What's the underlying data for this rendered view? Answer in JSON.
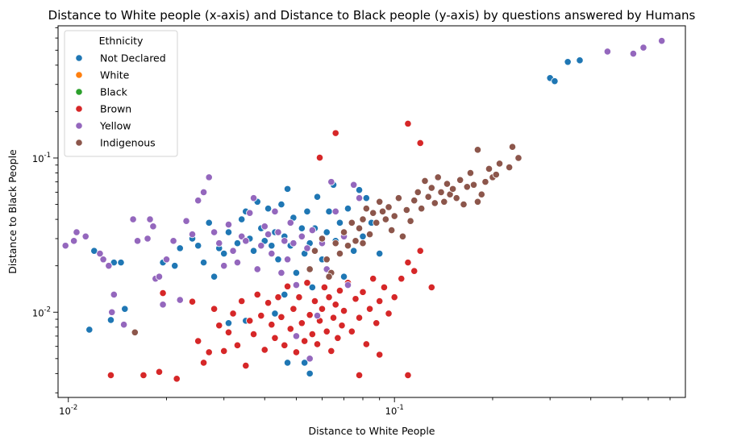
{
  "chart_data": {
    "type": "scatter",
    "title": "Distance to White people (x-axis) and Distance to Black people (y-axis) by questions answered by Humans",
    "xlabel": "Distance to White People",
    "ylabel": "Distance to Black People",
    "xscale": "log",
    "yscale": "log",
    "xlim": [
      0.0093,
      0.78
    ],
    "ylim": [
      0.0028,
      0.72
    ],
    "x_ticks": [
      {
        "value": 0.01,
        "label": "10^-2"
      },
      {
        "value": 0.1,
        "label": "10^-1"
      }
    ],
    "y_ticks": [
      {
        "value": 0.01,
        "label": "10^-2"
      },
      {
        "value": 0.1,
        "label": "10^-1"
      }
    ],
    "grid": false,
    "legend_position": "top-left",
    "legend_title": "Ethnicity",
    "series": [
      {
        "name": "Not Declared",
        "color": "#1f77b4",
        "points": [
          [
            0.0116,
            0.0077
          ],
          [
            0.012,
            0.025
          ],
          [
            0.0135,
            0.0089
          ],
          [
            0.0138,
            0.021
          ],
          [
            0.0145,
            0.021
          ],
          [
            0.0149,
            0.0105
          ],
          [
            0.0195,
            0.021
          ],
          [
            0.0212,
            0.02
          ],
          [
            0.022,
            0.026
          ],
          [
            0.024,
            0.03
          ],
          [
            0.025,
            0.027
          ],
          [
            0.026,
            0.021
          ],
          [
            0.027,
            0.038
          ],
          [
            0.028,
            0.017
          ],
          [
            0.029,
            0.026
          ],
          [
            0.03,
            0.024
          ],
          [
            0.031,
            0.0085
          ],
          [
            0.031,
            0.033
          ],
          [
            0.033,
            0.028
          ],
          [
            0.034,
            0.04
          ],
          [
            0.035,
            0.045
          ],
          [
            0.036,
            0.03
          ],
          [
            0.037,
            0.025
          ],
          [
            0.038,
            0.052
          ],
          [
            0.039,
            0.035
          ],
          [
            0.04,
            0.029
          ],
          [
            0.041,
            0.047
          ],
          [
            0.042,
            0.027
          ],
          [
            0.043,
            0.033
          ],
          [
            0.044,
            0.022
          ],
          [
            0.045,
            0.05
          ],
          [
            0.046,
            0.031
          ],
          [
            0.047,
            0.063
          ],
          [
            0.048,
            0.027
          ],
          [
            0.049,
            0.041
          ],
          [
            0.05,
            0.018
          ],
          [
            0.052,
            0.035
          ],
          [
            0.053,
            0.024
          ],
          [
            0.054,
            0.045
          ],
          [
            0.055,
            0.028
          ],
          [
            0.056,
            0.0145
          ],
          [
            0.057,
            0.035
          ],
          [
            0.058,
            0.056
          ],
          [
            0.06,
            0.022
          ],
          [
            0.062,
            0.033
          ],
          [
            0.063,
            0.045
          ],
          [
            0.065,
            0.067
          ],
          [
            0.066,
            0.029
          ],
          [
            0.068,
            0.038
          ],
          [
            0.07,
            0.017
          ],
          [
            0.072,
            0.047
          ],
          [
            0.075,
            0.025
          ],
          [
            0.078,
            0.062
          ],
          [
            0.08,
            0.031
          ],
          [
            0.082,
            0.055
          ],
          [
            0.085,
            0.038
          ],
          [
            0.09,
            0.024
          ],
          [
            0.035,
            0.0088
          ],
          [
            0.047,
            0.0047
          ],
          [
            0.053,
            0.0047
          ],
          [
            0.055,
            0.004
          ],
          [
            0.043,
            0.0098
          ],
          [
            0.046,
            0.013
          ],
          [
            0.3,
            0.33
          ],
          [
            0.31,
            0.315
          ],
          [
            0.34,
            0.42
          ],
          [
            0.37,
            0.43
          ]
        ]
      },
      {
        "name": "White",
        "color": "#ff7f0e",
        "points": []
      },
      {
        "name": "Black",
        "color": "#2ca02c",
        "points": []
      },
      {
        "name": "Brown",
        "color": "#d62728",
        "points": [
          [
            0.0135,
            0.0039
          ],
          [
            0.017,
            0.0039
          ],
          [
            0.019,
            0.0041
          ],
          [
            0.0215,
            0.0037
          ],
          [
            0.0195,
            0.0133
          ],
          [
            0.024,
            0.0117
          ],
          [
            0.025,
            0.0065
          ],
          [
            0.026,
            0.0047
          ],
          [
            0.027,
            0.0055
          ],
          [
            0.028,
            0.0105
          ],
          [
            0.029,
            0.0082
          ],
          [
            0.03,
            0.0056
          ],
          [
            0.031,
            0.0074
          ],
          [
            0.032,
            0.0098
          ],
          [
            0.033,
            0.0061
          ],
          [
            0.034,
            0.0118
          ],
          [
            0.035,
            0.0045
          ],
          [
            0.036,
            0.0088
          ],
          [
            0.037,
            0.0072
          ],
          [
            0.038,
            0.013
          ],
          [
            0.039,
            0.0095
          ],
          [
            0.04,
            0.0057
          ],
          [
            0.041,
            0.0115
          ],
          [
            0.042,
            0.0083
          ],
          [
            0.043,
            0.0068
          ],
          [
            0.044,
            0.0125
          ],
          [
            0.045,
            0.0093
          ],
          [
            0.046,
            0.0061
          ],
          [
            0.047,
            0.0147
          ],
          [
            0.048,
            0.0078
          ],
          [
            0.049,
            0.0105
          ],
          [
            0.05,
            0.0055
          ],
          [
            0.051,
            0.0125
          ],
          [
            0.052,
            0.0085
          ],
          [
            0.053,
            0.0065
          ],
          [
            0.054,
            0.0155
          ],
          [
            0.055,
            0.0096
          ],
          [
            0.056,
            0.0072
          ],
          [
            0.057,
            0.0118
          ],
          [
            0.058,
            0.0062
          ],
          [
            0.059,
            0.0088
          ],
          [
            0.06,
            0.0105
          ],
          [
            0.061,
            0.0145
          ],
          [
            0.062,
            0.0075
          ],
          [
            0.063,
            0.0125
          ],
          [
            0.064,
            0.0056
          ],
          [
            0.065,
            0.0092
          ],
          [
            0.066,
            0.0112
          ],
          [
            0.067,
            0.0068
          ],
          [
            0.068,
            0.0138
          ],
          [
            0.069,
            0.0082
          ],
          [
            0.07,
            0.0102
          ],
          [
            0.072,
            0.0155
          ],
          [
            0.074,
            0.0075
          ],
          [
            0.076,
            0.0122
          ],
          [
            0.078,
            0.0092
          ],
          [
            0.08,
            0.0135
          ],
          [
            0.082,
            0.0062
          ],
          [
            0.084,
            0.0105
          ],
          [
            0.086,
            0.0165
          ],
          [
            0.088,
            0.0085
          ],
          [
            0.09,
            0.0118
          ],
          [
            0.093,
            0.0145
          ],
          [
            0.096,
            0.0098
          ],
          [
            0.1,
            0.0125
          ],
          [
            0.105,
            0.0165
          ],
          [
            0.11,
            0.021
          ],
          [
            0.115,
            0.0185
          ],
          [
            0.12,
            0.025
          ],
          [
            0.13,
            0.0145
          ],
          [
            0.066,
            0.145
          ],
          [
            0.059,
            0.1005
          ],
          [
            0.11,
            0.167
          ],
          [
            0.12,
            0.125
          ],
          [
            0.078,
            0.0039
          ],
          [
            0.09,
            0.0053
          ],
          [
            0.11,
            0.0039
          ]
        ]
      },
      {
        "name": "Yellow",
        "color": "#9467bd",
        "points": [
          [
            0.0098,
            0.027
          ],
          [
            0.0104,
            0.029
          ],
          [
            0.0106,
            0.033
          ],
          [
            0.0113,
            0.031
          ],
          [
            0.0125,
            0.024
          ],
          [
            0.0128,
            0.022
          ],
          [
            0.0133,
            0.02
          ],
          [
            0.0136,
            0.01
          ],
          [
            0.0138,
            0.013
          ],
          [
            0.0148,
            0.0083
          ],
          [
            0.0158,
            0.04
          ],
          [
            0.0163,
            0.029
          ],
          [
            0.0175,
            0.03
          ],
          [
            0.0178,
            0.04
          ],
          [
            0.0182,
            0.036
          ],
          [
            0.0185,
            0.0165
          ],
          [
            0.019,
            0.017
          ],
          [
            0.0195,
            0.0112
          ],
          [
            0.02,
            0.022
          ],
          [
            0.021,
            0.029
          ],
          [
            0.022,
            0.012
          ],
          [
            0.023,
            0.039
          ],
          [
            0.024,
            0.032
          ],
          [
            0.025,
            0.053
          ],
          [
            0.026,
            0.06
          ],
          [
            0.027,
            0.075
          ],
          [
            0.028,
            0.033
          ],
          [
            0.029,
            0.028
          ],
          [
            0.03,
            0.02
          ],
          [
            0.031,
            0.037
          ],
          [
            0.032,
            0.025
          ],
          [
            0.033,
            0.021
          ],
          [
            0.034,
            0.031
          ],
          [
            0.035,
            0.029
          ],
          [
            0.036,
            0.044
          ],
          [
            0.037,
            0.055
          ],
          [
            0.038,
            0.019
          ],
          [
            0.039,
            0.027
          ],
          [
            0.04,
            0.036
          ],
          [
            0.041,
            0.032
          ],
          [
            0.042,
            0.024
          ],
          [
            0.043,
            0.045
          ],
          [
            0.044,
            0.033
          ],
          [
            0.045,
            0.018
          ],
          [
            0.046,
            0.029
          ],
          [
            0.047,
            0.022
          ],
          [
            0.048,
            0.038
          ],
          [
            0.049,
            0.028
          ],
          [
            0.05,
            0.015
          ],
          [
            0.052,
            0.031
          ],
          [
            0.054,
            0.026
          ],
          [
            0.056,
            0.034
          ],
          [
            0.058,
            0.0095
          ],
          [
            0.06,
            0.028
          ],
          [
            0.062,
            0.019
          ],
          [
            0.064,
            0.07
          ],
          [
            0.066,
            0.045
          ],
          [
            0.068,
            0.024
          ],
          [
            0.07,
            0.031
          ],
          [
            0.072,
            0.015
          ],
          [
            0.075,
            0.067
          ],
          [
            0.078,
            0.055
          ],
          [
            0.055,
            0.005
          ],
          [
            0.05,
            0.007
          ],
          [
            0.45,
            0.49
          ],
          [
            0.54,
            0.475
          ],
          [
            0.58,
            0.52
          ],
          [
            0.66,
            0.575
          ]
        ]
      },
      {
        "name": "Indigenous",
        "color": "#8c564b",
        "points": [
          [
            0.016,
            0.0074
          ],
          [
            0.055,
            0.019
          ],
          [
            0.057,
            0.025
          ],
          [
            0.06,
            0.03
          ],
          [
            0.062,
            0.022
          ],
          [
            0.064,
            0.018
          ],
          [
            0.066,
            0.028
          ],
          [
            0.068,
            0.024
          ],
          [
            0.07,
            0.033
          ],
          [
            0.072,
            0.027
          ],
          [
            0.074,
            0.038
          ],
          [
            0.076,
            0.029
          ],
          [
            0.078,
            0.035
          ],
          [
            0.08,
            0.04
          ],
          [
            0.082,
            0.047
          ],
          [
            0.084,
            0.032
          ],
          [
            0.086,
            0.044
          ],
          [
            0.088,
            0.038
          ],
          [
            0.09,
            0.052
          ],
          [
            0.092,
            0.045
          ],
          [
            0.094,
            0.04
          ],
          [
            0.096,
            0.048
          ],
          [
            0.098,
            0.034
          ],
          [
            0.1,
            0.042
          ],
          [
            0.103,
            0.055
          ],
          [
            0.106,
            0.031
          ],
          [
            0.109,
            0.046
          ],
          [
            0.112,
            0.039
          ],
          [
            0.115,
            0.053
          ],
          [
            0.118,
            0.06
          ],
          [
            0.121,
            0.047
          ],
          [
            0.124,
            0.071
          ],
          [
            0.127,
            0.056
          ],
          [
            0.13,
            0.064
          ],
          [
            0.133,
            0.051
          ],
          [
            0.136,
            0.075
          ],
          [
            0.139,
            0.06
          ],
          [
            0.142,
            0.052
          ],
          [
            0.145,
            0.068
          ],
          [
            0.148,
            0.058
          ],
          [
            0.151,
            0.063
          ],
          [
            0.155,
            0.055
          ],
          [
            0.159,
            0.072
          ],
          [
            0.163,
            0.05
          ],
          [
            0.167,
            0.065
          ],
          [
            0.171,
            0.08
          ],
          [
            0.175,
            0.067
          ],
          [
            0.18,
            0.052
          ],
          [
            0.185,
            0.058
          ],
          [
            0.19,
            0.07
          ],
          [
            0.195,
            0.085
          ],
          [
            0.2,
            0.075
          ],
          [
            0.205,
            0.078
          ],
          [
            0.21,
            0.092
          ],
          [
            0.225,
            0.087
          ],
          [
            0.23,
            0.118
          ],
          [
            0.18,
            0.113
          ],
          [
            0.24,
            0.1
          ],
          [
            0.063,
            0.017
          ],
          [
            0.08,
            0.028
          ]
        ]
      }
    ]
  }
}
